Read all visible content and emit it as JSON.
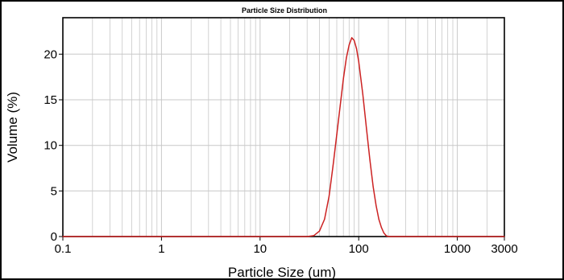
{
  "chart_data": {
    "type": "line",
    "title": "Particle Size Distribution",
    "xlabel": "Particle Size (um)",
    "ylabel": "Volume (%)",
    "xscale": "log",
    "xlim": [
      0.1,
      3000
    ],
    "ylim": [
      0,
      24
    ],
    "grid": true,
    "legend": "none",
    "line_color": "#cc2222",
    "x_ticks": [
      0.1,
      1,
      10,
      100,
      1000,
      3000
    ],
    "x_tick_labels": [
      "0.1",
      "1",
      "10",
      "100",
      "1000",
      "3000"
    ],
    "y_ticks": [
      0,
      5,
      10,
      15,
      20
    ],
    "y_tick_labels": [
      "0",
      "5",
      "10",
      "15",
      "20"
    ],
    "series": [
      {
        "x": [
          0.1,
          1,
          10,
          30,
          35,
          40,
          45,
          50,
          55,
          60,
          65,
          70,
          75,
          80,
          85,
          90,
          95,
          100,
          110,
          120,
          130,
          140,
          150,
          160,
          170,
          180,
          190,
          200,
          300,
          1000,
          3000
        ],
        "y": [
          0,
          0,
          0,
          0,
          0.1,
          0.6,
          1.9,
          4.4,
          7.8,
          11.2,
          14.4,
          17.3,
          19.6,
          21.0,
          21.8,
          21.5,
          20.6,
          19.2,
          15.6,
          11.8,
          8.4,
          5.5,
          3.4,
          1.9,
          1.0,
          0.4,
          0.1,
          0,
          0,
          0,
          0
        ]
      }
    ]
  }
}
